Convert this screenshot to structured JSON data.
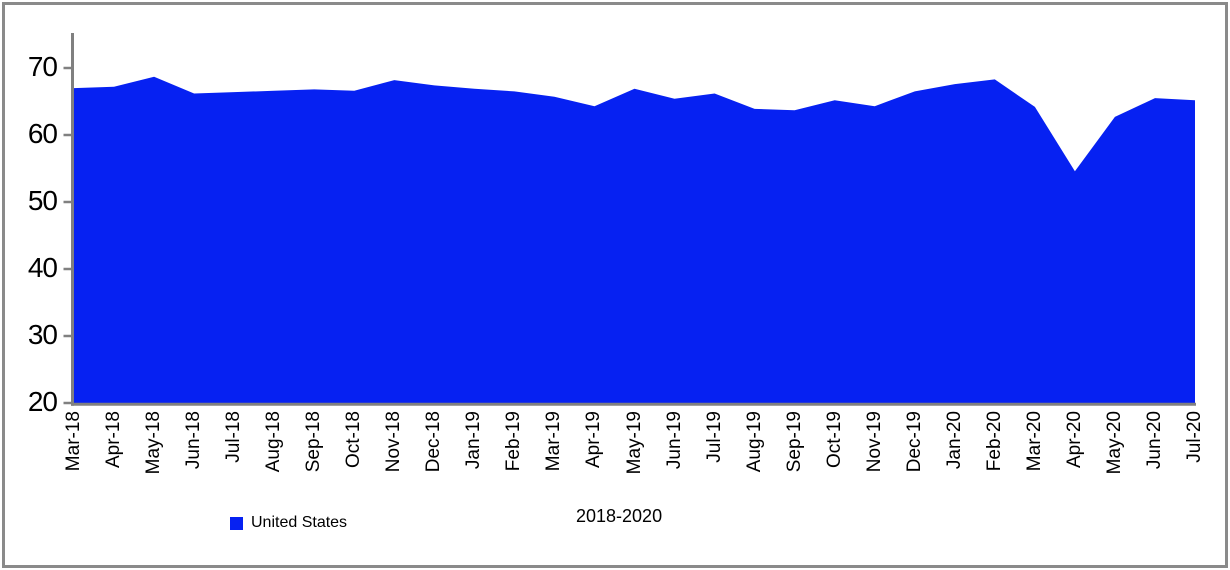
{
  "frame": {
    "border_color": "#8a8a8a",
    "background": "#ffffff"
  },
  "chart_data": {
    "type": "area",
    "title": "",
    "categories": [
      "Mar-18",
      "Apr-18",
      "May-18",
      "Jun-18",
      "Jul-18",
      "Aug-18",
      "Sep-18",
      "Oct-18",
      "Nov-18",
      "Dec-18",
      "Jan-19",
      "Feb-19",
      "Mar-19",
      "Apr-19",
      "May-19",
      "Jun-19",
      "Jul-19",
      "Aug-19",
      "Sep-19",
      "Oct-19",
      "Nov-19",
      "Dec-19",
      "Jan-20",
      "Feb-20",
      "Mar-20",
      "Apr-20",
      "May-20",
      "Jun-20",
      "Jul-20"
    ],
    "series": [
      {
        "name": "United States",
        "color": "#0621f2",
        "values": [
          67.0,
          67.2,
          68.7,
          66.2,
          66.4,
          66.6,
          66.8,
          66.6,
          68.2,
          67.4,
          66.9,
          66.5,
          65.7,
          64.3,
          66.9,
          65.4,
          66.2,
          63.9,
          63.7,
          65.2,
          64.3,
          66.5,
          67.6,
          68.3,
          64.2,
          54.6,
          62.7,
          65.5,
          65.2
        ]
      }
    ],
    "xlabel": "2018-2020",
    "ylabel": "",
    "ylim": [
      20,
      70
    ],
    "yticks": [
      70,
      60,
      50,
      40,
      30,
      20
    ],
    "grid": false,
    "axis_color": "#808080",
    "legend_position": "bottom-left"
  },
  "legend": {
    "entries": [
      {
        "label": "United States",
        "color": "#0621f2"
      }
    ]
  }
}
